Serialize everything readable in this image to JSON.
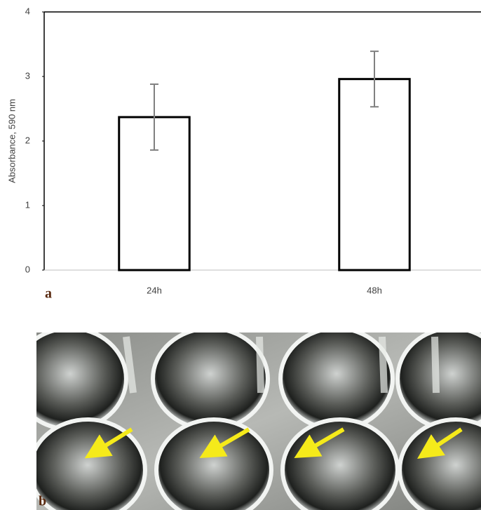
{
  "chart_data": {
    "type": "bar",
    "y_label": "Absorbance, 590 nm",
    "categories": [
      "24h",
      "48h"
    ],
    "values": [
      2.37,
      2.96
    ],
    "errors": [
      0.51,
      0.43
    ],
    "ylim": [
      0,
      4
    ],
    "yticks": [
      0,
      1,
      2,
      3,
      4
    ],
    "color": "#ffffff",
    "edge_color": "#000000",
    "error_color": "#808080",
    "panel_label": "a"
  },
  "photo": {
    "panel_label": "b"
  }
}
